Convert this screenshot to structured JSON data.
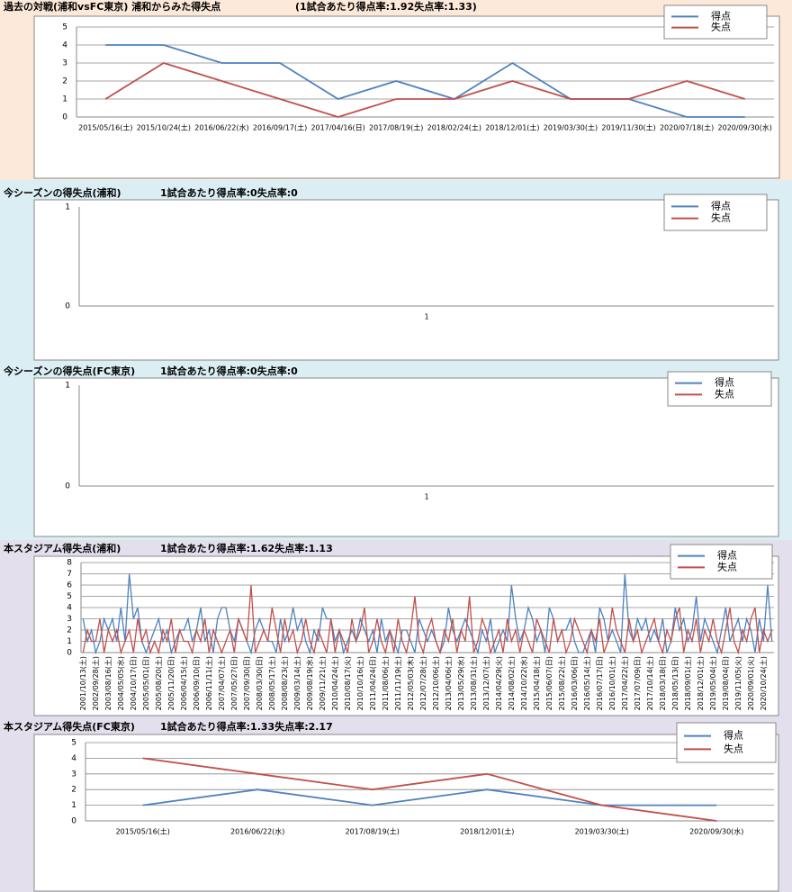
{
  "chart_data": [
    {
      "type": "line",
      "title": "過去の対戦(浦和vsFC東京) 浦和からみた得失点",
      "subtitle": "(1試合あたり得点率:1.92失点率:1.33)",
      "categories": [
        "2015/05/16(土)",
        "2015/10/24(土)",
        "2016/06/22(水)",
        "2016/09/17(土)",
        "2017/04/16(日)",
        "2017/08/19(土)",
        "2018/02/24(土)",
        "2018/12/01(土)",
        "2019/03/30(土)",
        "2019/11/30(土)",
        "2020/07/18(土)",
        "2020/09/30(水)"
      ],
      "series": [
        {
          "name": "得点",
          "color": "#4f81bd",
          "values": [
            4,
            4,
            3,
            3,
            1,
            2,
            1,
            3,
            1,
            1,
            0,
            0
          ]
        },
        {
          "name": "失点",
          "color": "#c0504d",
          "values": [
            1,
            3,
            2,
            1,
            0,
            1,
            1,
            2,
            1,
            1,
            2,
            1
          ]
        }
      ],
      "ylim": [
        0,
        5
      ],
      "yticks": [
        0,
        1,
        2,
        3,
        4,
        5
      ],
      "grid": true,
      "legend": "top-right"
    },
    {
      "type": "line",
      "title": "今シーズンの得失点(浦和)",
      "subtitle": "1試合あたり得点率:0失点率:0",
      "categories": [
        "1"
      ],
      "series": [
        {
          "name": "得点",
          "color": "#4f81bd",
          "values": [
            null
          ]
        },
        {
          "name": "失点",
          "color": "#c0504d",
          "values": [
            null
          ]
        }
      ],
      "ylim": [
        0,
        1
      ],
      "yticks": [
        0,
        1
      ],
      "grid": false,
      "legend": "top-right"
    },
    {
      "type": "line",
      "title": "今シーズンの得失点(FC東京)",
      "subtitle": "1試合あたり得点率:0失点率:0",
      "categories": [
        "1"
      ],
      "series": [
        {
          "name": "得点",
          "color": "#4f81bd",
          "values": [
            null
          ]
        },
        {
          "name": "失点",
          "color": "#c0504d",
          "values": [
            null
          ]
        }
      ],
      "ylim": [
        0,
        1
      ],
      "yticks": [
        0,
        1
      ],
      "grid": false,
      "legend": "top-right"
    },
    {
      "type": "line",
      "title": "本スタジアム得失点(浦和)",
      "subtitle": "1試合あたり得点率:1.62失点率:1.13",
      "categories": [
        "2001/10/13(土)",
        null,
        null,
        "2002/09/28(土)",
        null,
        null,
        "2003/08/16(土)",
        null,
        null,
        "2004/05/05(水)",
        null,
        null,
        "2004/10/17(日)",
        null,
        null,
        "2005/05/01(日)",
        null,
        null,
        "2005/08/20(土)",
        null,
        null,
        "2005/11/20(日)",
        null,
        null,
        "2006/04/15(土)",
        null,
        null,
        "2006/09/10(日)",
        null,
        null,
        "2006/11/11(土)",
        null,
        null,
        "2007/04/07(土)",
        null,
        null,
        "2007/05/27(日)",
        null,
        null,
        "2007/09/30(日)",
        null,
        null,
        "2008/03/30(日)",
        null,
        null,
        "2008/05/17(土)",
        null,
        null,
        "2008/08/23(土)",
        null,
        null,
        "2009/03/14(土)",
        null,
        null,
        "2009/08/19(水)",
        null,
        null,
        "2009/11/21(土)",
        null,
        null,
        "2010/04/24(土)",
        null,
        null,
        "2010/08/17(火)",
        null,
        null,
        "2010/10/16(土)",
        null,
        null,
        "2011/04/24(日)",
        null,
        null,
        "2011/08/06(土)",
        null,
        null,
        "2011/11/19(土)",
        null,
        null,
        "2012/05/03(木)",
        null,
        null,
        "2012/07/28(土)",
        null,
        null,
        "2012/10/06(土)",
        null,
        null,
        "2013/04/06(土)",
        null,
        null,
        "2013/05/29(水)",
        null,
        null,
        "2013/08/31(土)",
        null,
        null,
        "2013/12/07(土)",
        null,
        null,
        "2014/04/29(火)",
        null,
        null,
        "2014/08/02(土)",
        null,
        null,
        "2014/10/22(水)",
        null,
        null,
        "2015/04/18(土)",
        null,
        null,
        "2015/06/07(日)",
        null,
        null,
        "2015/08/22(土)",
        null,
        null,
        "2016/03/06(日)",
        null,
        null,
        "2016/05/14(土)",
        null,
        null,
        "2016/07/17(日)",
        null,
        null,
        "2016/10/01(土)",
        null,
        null,
        "2017/04/22(土)",
        null,
        null,
        "2017/07/09(日)",
        null,
        null,
        "2017/10/14(土)",
        null,
        null,
        "2018/03/18(日)",
        null,
        null,
        "2018/05/13(日)",
        null,
        null,
        "2018/09/01(土)",
        null,
        null,
        "2018/12/01(土)",
        null,
        null,
        "2019/05/04(土)",
        null,
        null,
        "2019/08/04(日)",
        null,
        null,
        "2019/11/05(火)",
        null,
        null,
        "2020/09/01(火)",
        null,
        null,
        "2020/10/24(土)",
        null,
        null
      ],
      "series": [
        {
          "name": "得点",
          "color": "#4f81bd",
          "values": [
            3,
            1,
            2,
            0,
            1,
            3,
            2,
            3,
            1,
            4,
            1,
            7,
            3,
            4,
            1,
            0,
            1,
            2,
            3,
            1,
            2,
            0,
            1,
            2,
            2,
            3,
            1,
            2,
            4,
            1,
            2,
            0,
            3,
            4,
            4,
            2,
            1,
            3,
            2,
            1,
            0,
            2,
            3,
            2,
            1,
            1,
            0,
            3,
            1,
            2,
            4,
            2,
            3,
            1,
            0,
            2,
            1,
            4,
            3,
            3,
            1,
            2,
            0,
            1,
            2,
            1,
            3,
            2,
            1,
            2,
            0,
            3,
            1,
            2,
            1,
            0,
            2,
            2,
            1,
            0,
            3,
            2,
            1,
            2,
            1,
            0,
            1,
            4,
            2,
            1,
            2,
            3,
            2,
            1,
            0,
            2,
            1,
            3,
            0,
            1,
            2,
            1,
            6,
            3,
            1,
            2,
            4,
            3,
            1,
            2,
            0,
            4,
            3,
            1,
            2,
            2,
            3,
            1,
            0,
            0,
            1,
            2,
            0,
            4,
            3,
            1,
            2,
            1,
            0,
            7,
            2,
            1,
            3,
            2,
            3,
            1,
            2,
            1,
            3,
            0,
            1,
            4,
            2,
            3,
            1,
            2,
            5,
            1,
            3,
            2,
            1,
            0,
            2,
            4,
            1,
            2,
            3,
            1,
            3,
            2,
            0,
            3,
            1,
            6,
            1
          ]
        },
        {
          "name": "失点",
          "color": "#c0504d",
          "values": [
            0,
            2,
            1,
            1,
            3,
            0,
            2,
            1,
            2,
            0,
            1,
            2,
            0,
            3,
            1,
            2,
            0,
            1,
            0,
            2,
            1,
            3,
            0,
            2,
            1,
            1,
            0,
            2,
            1,
            3,
            0,
            2,
            1,
            0,
            1,
            2,
            0,
            3,
            2,
            1,
            6,
            0,
            1,
            2,
            1,
            4,
            2,
            0,
            3,
            1,
            2,
            0,
            1,
            3,
            1,
            0,
            2,
            1,
            0,
            3,
            0,
            2,
            1,
            0,
            3,
            1,
            2,
            4,
            0,
            1,
            3,
            1,
            0,
            2,
            0,
            3,
            1,
            0,
            2,
            5,
            1,
            0,
            2,
            3,
            1,
            0,
            2,
            1,
            3,
            0,
            2,
            1,
            5,
            0,
            1,
            3,
            2,
            0,
            1,
            2,
            0,
            3,
            1,
            2,
            0,
            2,
            1,
            0,
            3,
            2,
            1,
            0,
            3,
            1,
            2,
            0,
            1,
            3,
            2,
            1,
            0,
            2,
            1,
            3,
            0,
            1,
            4,
            2,
            1,
            0,
            3,
            1,
            2,
            0,
            1,
            2,
            3,
            1,
            0,
            2,
            1,
            3,
            4,
            0,
            2,
            1,
            3,
            0,
            2,
            1,
            3,
            1,
            0,
            2,
            4,
            1,
            0,
            2,
            1,
            3,
            4,
            0,
            2,
            1,
            2
          ]
        }
      ],
      "ylim": [
        0,
        8
      ],
      "yticks": [
        0,
        1,
        2,
        3,
        4,
        5,
        6,
        7,
        8
      ],
      "grid": true,
      "legend": "top-right"
    },
    {
      "type": "line",
      "title": "本スタジアム得失点(FC東京)",
      "subtitle": "1試合あたり得点率:1.33失点率:2.17",
      "categories": [
        "2015/05/16(土)",
        "2016/06/22(水)",
        "2017/08/19(土)",
        "2018/12/01(土)",
        "2019/03/30(土)",
        "2020/09/30(水)"
      ],
      "series": [
        {
          "name": "得点",
          "color": "#4f81bd",
          "values": [
            1,
            2,
            1,
            2,
            1,
            1
          ]
        },
        {
          "name": "失点",
          "color": "#c0504d",
          "values": [
            4,
            3,
            2,
            3,
            1,
            0
          ]
        }
      ],
      "ylim": [
        0,
        5
      ],
      "yticks": [
        0,
        1,
        2,
        3,
        4,
        5
      ],
      "grid": true,
      "legend": "top-right"
    }
  ]
}
